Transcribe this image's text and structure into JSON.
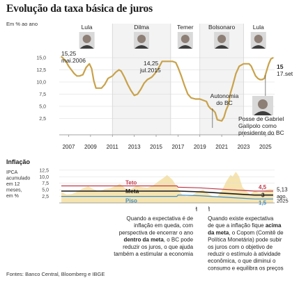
{
  "title": "Evolução da taxa básica de juros",
  "unit": "Em % ao ano",
  "source": "Fontes: Banco Central, Bloomberg e IBGE",
  "chart_data": [
    {
      "type": "line",
      "name": "selic",
      "ylim": [
        0,
        16
      ],
      "yticks": [
        "2,5",
        "5,0",
        "7,5",
        "10,0",
        "12,5",
        "15,0"
      ],
      "ytick_values": [
        2.5,
        5,
        7.5,
        10,
        12.5,
        15
      ],
      "xticks": [
        "2007",
        "2009",
        "2011",
        "2013",
        "2015",
        "2017",
        "2019",
        "2021",
        "2023",
        "2025"
      ],
      "xtick_values": [
        2007,
        2009,
        2011,
        2013,
        2015,
        2017,
        2019,
        2021,
        2023,
        2025
      ],
      "color": "#c9a24a",
      "x": [
        2006.33,
        2006.75,
        2007.0,
        2007.25,
        2007.5,
        2007.75,
        2008.0,
        2008.3,
        2008.6,
        2008.9,
        2009.1,
        2009.3,
        2009.5,
        2010.0,
        2010.3,
        2010.6,
        2011.0,
        2011.3,
        2011.6,
        2011.8,
        2012.1,
        2012.4,
        2012.7,
        2013.0,
        2013.3,
        2013.6,
        2013.9,
        2014.2,
        2014.6,
        2014.9,
        2015.2,
        2015.55,
        2016.0,
        2016.5,
        2016.8,
        2017.0,
        2017.3,
        2017.6,
        2017.9,
        2018.2,
        2018.6,
        2019.0,
        2019.6,
        2019.8,
        2020.0,
        2020.2,
        2020.4,
        2020.6,
        2021.0,
        2021.2,
        2021.4,
        2021.6,
        2021.8,
        2022.0,
        2022.3,
        2022.6,
        2023.0,
        2023.5,
        2023.7,
        2023.9,
        2024.1,
        2024.3,
        2024.5,
        2024.7,
        2024.9,
        2025.1,
        2025.3,
        2025.5,
        2025.71
      ],
      "y": [
        15.25,
        14.25,
        13.25,
        12.5,
        11.75,
        11.25,
        11.25,
        11.5,
        13.0,
        13.75,
        12.75,
        10.25,
        8.75,
        8.75,
        9.5,
        10.75,
        11.25,
        12.0,
        12.5,
        12.25,
        11.0,
        9.5,
        8.25,
        7.25,
        7.5,
        8.5,
        9.75,
        10.5,
        11.0,
        11.75,
        12.75,
        14.25,
        14.25,
        14.25,
        14.0,
        13.0,
        11.25,
        9.25,
        7.5,
        6.75,
        6.5,
        6.5,
        6.0,
        5.0,
        4.5,
        4.25,
        3.75,
        2.25,
        2.0,
        2.75,
        4.25,
        5.25,
        7.75,
        9.25,
        11.75,
        13.25,
        13.75,
        13.75,
        13.25,
        12.25,
        11.25,
        10.75,
        10.5,
        10.5,
        10.75,
        12.25,
        13.75,
        14.75,
        15.0
      ],
      "labels": {
        "start_value": "15,25",
        "start_date": "mai.2006",
        "peak_value": "14,25",
        "peak_date": "jul.2015",
        "end_value": "15",
        "end_date": "17.set"
      },
      "annotations": [
        "Autonomia",
        "do BC",
        "Posse de Gabriel",
        "Galípolo como",
        "presidente do BC"
      ],
      "presidents": [
        {
          "name": "Lula",
          "start": 2006.33,
          "end": 2011.0
        },
        {
          "name": "Dilma",
          "start": 2011.0,
          "end": 2016.33
        },
        {
          "name": "Temer",
          "start": 2016.33,
          "end": 2019.0
        },
        {
          "name": "Bolsonaro",
          "start": 2019.0,
          "end": 2023.0
        },
        {
          "name": "Lula",
          "start": 2023.0,
          "end": 2025.71
        }
      ]
    },
    {
      "type": "area",
      "name": "inflacao",
      "title": "Inflação",
      "ylabel": "IPCA acumulado em 12 meses, em %",
      "ylabel_lines": [
        "IPCA",
        "acumulado",
        "em 12",
        "meses,",
        "em %"
      ],
      "ylim": [
        0,
        13
      ],
      "yticks": [
        "2,5",
        "5,0",
        "7,5",
        "10,0",
        "12,5"
      ],
      "ytick_values": [
        2.5,
        5,
        7.5,
        10,
        12.5
      ],
      "area_color": "#f6e4b0",
      "x": [
        2006.33,
        2006.8,
        2007.3,
        2007.8,
        2008.3,
        2008.8,
        2009.3,
        2009.8,
        2010.3,
        2010.8,
        2011.3,
        2011.7,
        2012.2,
        2012.7,
        2013.2,
        2013.7,
        2014.2,
        2014.7,
        2015.2,
        2015.7,
        2016.0,
        2016.5,
        2017.0,
        2017.4,
        2017.8,
        2018.3,
        2018.8,
        2019.3,
        2019.8,
        2020.3,
        2020.6,
        2021.0,
        2021.4,
        2021.8,
        2022.0,
        2022.3,
        2022.6,
        2022.9,
        2023.3,
        2023.6,
        2024.0,
        2024.4,
        2024.8,
        2025.1,
        2025.4,
        2025.71
      ],
      "values": [
        4.2,
        3.2,
        3.4,
        4.3,
        5.6,
        6.3,
        5.2,
        4.3,
        5.3,
        5.6,
        6.5,
        7.3,
        5.5,
        5.3,
        6.5,
        6.0,
        5.8,
        6.6,
        8.2,
        9.6,
        10.7,
        8.8,
        5.4,
        3.0,
        2.5,
        2.9,
        4.4,
        4.9,
        3.4,
        2.3,
        2.4,
        4.6,
        8.1,
        10.7,
        10.1,
        11.9,
        10.0,
        6.0,
        4.3,
        3.2,
        4.6,
        3.9,
        4.2,
        5.0,
        5.3,
        5.13
      ],
      "series": [
        {
          "name": "Teto",
          "color": "#c0394a",
          "x": [
            2006.33,
            2016.9,
            2017.0,
            2019.0,
            2020.0,
            2021.0,
            2022.0,
            2023.0,
            2024.0,
            2025.71
          ],
          "values": [
            6.5,
            6.5,
            6.0,
            5.75,
            5.5,
            5.25,
            5.0,
            4.75,
            4.5,
            4.5
          ]
        },
        {
          "name": "Meta",
          "color": "#1a1a1a",
          "x": [
            2006.33,
            2016.9,
            2017.0,
            2019.0,
            2020.0,
            2021.0,
            2022.0,
            2023.0,
            2024.0,
            2025.71
          ],
          "values": [
            4.5,
            4.5,
            4.5,
            4.25,
            4.0,
            3.75,
            3.5,
            3.25,
            3.0,
            3.0
          ]
        },
        {
          "name": "Piso",
          "color": "#3d8fc9",
          "x": [
            2006.33,
            2016.9,
            2017.0,
            2019.0,
            2020.0,
            2021.0,
            2022.0,
            2023.0,
            2024.0,
            2025.71
          ],
          "values": [
            2.5,
            2.5,
            3.0,
            2.75,
            2.5,
            2.25,
            2.0,
            1.75,
            1.5,
            1.5
          ]
        }
      ],
      "end_labels": {
        "teto": "4,5",
        "meta": "3",
        "piso": "1,5",
        "ipca": "5,13",
        "date1": "ago.",
        "date2": "2025"
      }
    }
  ],
  "notes": {
    "left": [
      "Quando a expectativa é de",
      "inflação em queda, com",
      "perspectiva de encerrar o ano",
      "dentro da meta, o BC pode",
      "reduzir os juros, o que ajuda",
      "também a estimular a economia"
    ],
    "left_bold": "dentro da meta",
    "right": [
      "Quando existe expectativa",
      "de que a inflação fique acima",
      "da meta, o Copom (Comitê de",
      "Política Monetária) pode subir",
      "os juros com o objetivo de",
      "reduzir o estímulo à atividade",
      "econômica, o que diminui o",
      "consumo e equilibra os preços"
    ],
    "right_bold": [
      "acima",
      "da meta"
    ]
  }
}
